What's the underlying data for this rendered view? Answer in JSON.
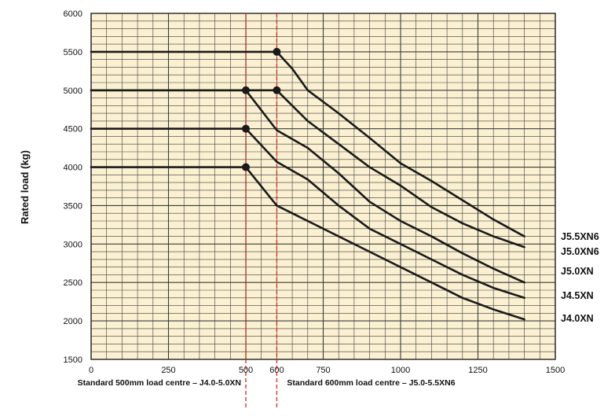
{
  "chart_data": {
    "type": "line",
    "title": "",
    "xlabel": "",
    "ylabel": "Rated load (kg)",
    "xlim": [
      0,
      1500
    ],
    "ylim": [
      1500,
      6000
    ],
    "x_ticks": [
      "0",
      "250",
      "500",
      "600",
      "750",
      "1000",
      "1250",
      "1500"
    ],
    "x_tick_values": [
      0,
      250,
      500,
      600,
      750,
      1000,
      1250,
      1500
    ],
    "y_ticks": [
      "1500",
      "2000",
      "2500",
      "3000",
      "3500",
      "4000",
      "4500",
      "5000",
      "5500",
      "6000"
    ],
    "y_tick_values": [
      1500,
      2000,
      2500,
      3000,
      3500,
      4000,
      4500,
      5000,
      5500,
      6000
    ],
    "grid": true,
    "background_color": "#fbf1d2",
    "grid_color": "#3a3a3a",
    "line_color": "#1a1a1a",
    "reference_line_color": "#e0302b",
    "reference_lines": [
      {
        "x": 500,
        "label": "Standard 500mm load centre – J4.0-5.0XN"
      },
      {
        "x": 600,
        "label": "Standard 600mm load centre – J5.0-5.5XN6"
      }
    ],
    "series": [
      {
        "name": "J5.5XN6",
        "marker": [
          600,
          5500
        ],
        "x": [
          0,
          600,
          650,
          700,
          800,
          900,
          1000,
          1100,
          1200,
          1300,
          1400
        ],
        "y": [
          5500,
          5500,
          5280,
          5000,
          4700,
          4380,
          4050,
          3820,
          3570,
          3320,
          3100
        ]
      },
      {
        "name": "J5.0XN6",
        "marker": [
          600,
          5000
        ],
        "x": [
          0,
          600,
          700,
          800,
          900,
          1000,
          1100,
          1200,
          1300,
          1400
        ],
        "y": [
          5000,
          5000,
          4600,
          4300,
          4000,
          3760,
          3480,
          3270,
          3100,
          2960
        ]
      },
      {
        "name": "J5.0XN",
        "marker": [
          500,
          5000
        ],
        "x": [
          0,
          500,
          600,
          700,
          800,
          900,
          1000,
          1100,
          1200,
          1300,
          1400
        ],
        "y": [
          5000,
          5000,
          4480,
          4250,
          3920,
          3550,
          3300,
          3100,
          2880,
          2680,
          2500
        ]
      },
      {
        "name": "J4.5XN",
        "marker": [
          500,
          4500
        ],
        "x": [
          0,
          500,
          600,
          700,
          800,
          900,
          1000,
          1100,
          1200,
          1300,
          1400
        ],
        "y": [
          4500,
          4500,
          4070,
          3840,
          3500,
          3200,
          3000,
          2800,
          2600,
          2430,
          2300
        ]
      },
      {
        "name": "J4.0XN",
        "marker": [
          500,
          4000
        ],
        "x": [
          0,
          500,
          600,
          700,
          800,
          900,
          1000,
          1100,
          1200,
          1300,
          1400
        ],
        "y": [
          4000,
          4000,
          3500,
          3300,
          3100,
          2900,
          2700,
          2500,
          2300,
          2150,
          2020
        ]
      }
    ]
  }
}
